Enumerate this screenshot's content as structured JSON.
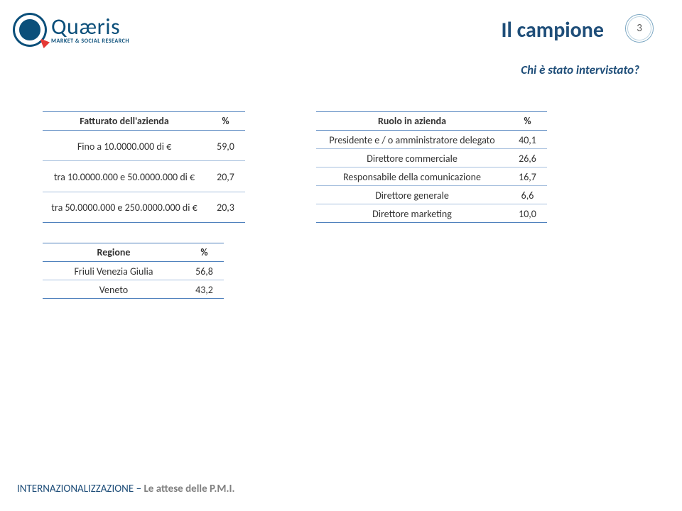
{
  "logo": {
    "main": "Quæris",
    "sub": "MARKET & SOCIAL RESEARCH"
  },
  "title": "Il campione",
  "page_number": "3",
  "subtitle": "Chi è stato intervistato?",
  "tables": {
    "turnover": {
      "header_label": "Fatturato dell'azienda",
      "header_value": "%",
      "rows": [
        {
          "label": "Fino a 10.0000.000 di €",
          "value": "59,0"
        },
        {
          "label": "tra 10.0000.000 e 50.0000.000 di €",
          "value": "20,7"
        },
        {
          "label": "tra 50.0000.000 e 250.0000.000 di €",
          "value": "20,3"
        }
      ]
    },
    "role": {
      "header_label": "Ruolo in azienda",
      "header_value": "%",
      "rows": [
        {
          "label": "Presidente e / o amministratore delegato",
          "value": "40,1"
        },
        {
          "label": "Direttore commerciale",
          "value": "26,6"
        },
        {
          "label": "Responsabile della comunicazione",
          "value": "16,7"
        },
        {
          "label": "Direttore generale",
          "value": "6,6"
        },
        {
          "label": "Direttore marketing",
          "value": "10,0"
        }
      ]
    },
    "region": {
      "header_label": "Regione",
      "header_value": "%",
      "rows": [
        {
          "label": "Friuli Venezia Giulia",
          "value": "56,8"
        },
        {
          "label": "Veneto",
          "value": "43,2"
        }
      ]
    }
  },
  "footer": {
    "left": "INTERNAZIONALIZZAZIONE – ",
    "right": "Le attese delle P.M.I."
  },
  "colors": {
    "brand_blue": "#1f4e79",
    "table_border": "#4f81bd",
    "row_border": "#a7c0de",
    "grey": "#808080",
    "logo_dark": "#0b4f7a",
    "logo_red": "#e53935"
  }
}
